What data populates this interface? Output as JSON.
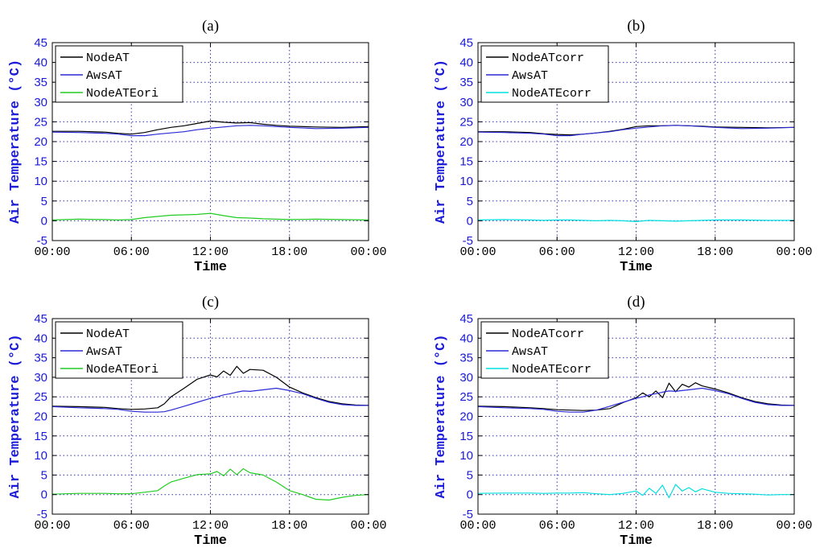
{
  "chart_data": [
    {
      "panel": "(a)",
      "type": "line",
      "title": "(a)",
      "xlabel": "Time",
      "ylabel": "Air Temperature (°C)",
      "ylim": [
        -5,
        45
      ],
      "yticks": [
        "-5",
        "0",
        "5",
        "10",
        "15",
        "20",
        "25",
        "30",
        "35",
        "40",
        "45"
      ],
      "xticks": [
        "00:00",
        "06:00",
        "12:00",
        "18:00",
        "00:00"
      ],
      "xlim": [
        0,
        24
      ],
      "grid": true,
      "legend_position": "top-left",
      "x": [
        0,
        2,
        4,
        5,
        6,
        7,
        8,
        9,
        10,
        11,
        12,
        13,
        14,
        15,
        16,
        17,
        18,
        20,
        22,
        24
      ],
      "series": [
        {
          "name": "NodeAT",
          "color": "#000000",
          "values": [
            22.6,
            22.6,
            22.4,
            22.1,
            21.9,
            22.3,
            23.0,
            23.6,
            24.0,
            24.6,
            25.2,
            24.9,
            24.7,
            24.8,
            24.4,
            24.1,
            23.9,
            23.7,
            23.6,
            23.8
          ]
        },
        {
          "name": "AwsAT",
          "color": "#2a2ad6",
          "values": [
            22.4,
            22.3,
            22.1,
            21.9,
            21.5,
            21.5,
            21.9,
            22.2,
            22.5,
            23.0,
            23.4,
            23.7,
            24.0,
            24.1,
            24.0,
            23.8,
            23.6,
            23.3,
            23.4,
            23.6
          ]
        },
        {
          "name": "NodeATEori",
          "color": "#22cc22",
          "values": [
            0.2,
            0.4,
            0.3,
            0.2,
            0.3,
            0.8,
            1.1,
            1.4,
            1.5,
            1.6,
            1.9,
            1.3,
            0.8,
            0.7,
            0.5,
            0.4,
            0.3,
            0.4,
            0.3,
            0.2
          ]
        }
      ]
    },
    {
      "panel": "(b)",
      "type": "line",
      "title": "(b)",
      "xlabel": "Time",
      "ylabel": "Air Temperature (°C)",
      "ylim": [
        -5,
        45
      ],
      "yticks": [
        "-5",
        "0",
        "5",
        "10",
        "15",
        "20",
        "25",
        "30",
        "35",
        "40",
        "45"
      ],
      "xticks": [
        "00:00",
        "06:00",
        "12:00",
        "18:00",
        "00:00"
      ],
      "xlim": [
        0,
        24
      ],
      "grid": true,
      "legend_position": "top-left",
      "x": [
        0,
        2,
        4,
        5,
        6,
        7,
        8,
        9,
        10,
        11,
        12,
        13,
        14,
        15,
        16,
        17,
        18,
        20,
        22,
        24
      ],
      "series": [
        {
          "name": "NodeATcorr",
          "color": "#000000",
          "values": [
            22.5,
            22.5,
            22.3,
            22.0,
            21.8,
            21.7,
            21.9,
            22.2,
            22.6,
            23.1,
            23.8,
            24.0,
            24.0,
            24.1,
            24.0,
            23.9,
            23.7,
            23.6,
            23.5,
            23.6
          ]
        },
        {
          "name": "AwsAT",
          "color": "#2a2ad6",
          "values": [
            22.4,
            22.3,
            22.1,
            21.9,
            21.5,
            21.5,
            21.9,
            22.2,
            22.5,
            23.0,
            23.4,
            23.7,
            24.0,
            24.1,
            24.0,
            23.8,
            23.6,
            23.3,
            23.4,
            23.6
          ]
        },
        {
          "name": "NodeATEcorr",
          "color": "#00e0e0",
          "values": [
            0.2,
            0.3,
            0.2,
            0.1,
            0.2,
            0.2,
            0.1,
            0.0,
            0.1,
            0.0,
            -0.2,
            0.1,
            0.0,
            -0.1,
            0.0,
            0.1,
            0.2,
            0.2,
            0.1,
            0.1
          ]
        }
      ]
    },
    {
      "panel": "(c)",
      "type": "line",
      "title": "(c)",
      "xlabel": "Time",
      "ylabel": "Air Temperature (°C)",
      "ylim": [
        -5,
        45
      ],
      "yticks": [
        "-5",
        "0",
        "5",
        "10",
        "15",
        "20",
        "25",
        "30",
        "35",
        "40",
        "45"
      ],
      "xticks": [
        "00:00",
        "06:00",
        "12:00",
        "18:00",
        "00:00"
      ],
      "xlim": [
        0,
        24
      ],
      "grid": true,
      "legend_position": "top-left",
      "x": [
        0,
        2,
        4,
        5,
        6,
        7,
        8,
        8.5,
        9,
        10,
        11,
        12,
        12.5,
        13,
        13.5,
        14,
        14.5,
        15,
        16,
        17,
        18,
        19,
        20,
        21,
        22,
        23,
        24
      ],
      "series": [
        {
          "name": "NodeAT",
          "color": "#000000",
          "values": [
            22.6,
            22.5,
            22.3,
            22.0,
            21.8,
            21.9,
            22.2,
            23.2,
            25.0,
            27.2,
            29.5,
            30.6,
            30.1,
            31.6,
            30.5,
            32.8,
            31.0,
            32.0,
            31.8,
            30.0,
            27.5,
            26.0,
            24.8,
            23.8,
            23.2,
            22.9,
            22.8
          ]
        },
        {
          "name": "AwsAT",
          "color": "#2a2ad6",
          "values": [
            22.5,
            22.2,
            22.0,
            21.8,
            21.3,
            21.1,
            21.1,
            21.2,
            21.6,
            22.6,
            23.6,
            24.6,
            25.0,
            25.5,
            25.8,
            26.2,
            26.5,
            26.4,
            26.8,
            27.2,
            26.6,
            25.8,
            24.6,
            23.6,
            23.0,
            22.8,
            22.8
          ]
        },
        {
          "name": "NodeATEori",
          "color": "#22cc22",
          "values": [
            0.1,
            0.3,
            0.3,
            0.2,
            0.2,
            0.6,
            1.0,
            2.2,
            3.2,
            4.2,
            5.1,
            5.3,
            5.9,
            4.8,
            6.5,
            5.1,
            6.6,
            5.6,
            5.0,
            3.2,
            1.0,
            0.0,
            -1.2,
            -1.4,
            -0.7,
            -0.2,
            0.0
          ]
        }
      ]
    },
    {
      "panel": "(d)",
      "type": "line",
      "title": "(d)",
      "xlabel": "Time",
      "ylabel": "Air Temperature (°C)",
      "ylim": [
        -5,
        45
      ],
      "yticks": [
        "-5",
        "0",
        "5",
        "10",
        "15",
        "20",
        "25",
        "30",
        "35",
        "40",
        "45"
      ],
      "xticks": [
        "00:00",
        "06:00",
        "12:00",
        "18:00",
        "00:00"
      ],
      "xlim": [
        0,
        24
      ],
      "grid": true,
      "legend_position": "top-left",
      "x": [
        0,
        2,
        4,
        5,
        6,
        7,
        8,
        9,
        10,
        11,
        12,
        12.5,
        13,
        13.5,
        14,
        14.5,
        15,
        15.5,
        16,
        16.5,
        17,
        18,
        19,
        20,
        21,
        22,
        23,
        24
      ],
      "series": [
        {
          "name": "NodeATcorr",
          "color": "#000000",
          "values": [
            22.6,
            22.5,
            22.2,
            22.0,
            21.7,
            21.6,
            21.5,
            21.6,
            22.0,
            23.5,
            24.8,
            26.0,
            25.0,
            26.5,
            24.8,
            28.5,
            26.3,
            28.2,
            27.5,
            28.6,
            27.8,
            27.0,
            26.0,
            24.8,
            23.8,
            23.2,
            22.9,
            22.8
          ]
        },
        {
          "name": "AwsAT",
          "color": "#2a2ad6",
          "values": [
            22.5,
            22.2,
            22.0,
            21.8,
            21.3,
            21.1,
            21.1,
            21.6,
            22.6,
            23.6,
            24.6,
            25.0,
            25.5,
            25.8,
            26.2,
            26.5,
            26.4,
            26.6,
            26.8,
            27.0,
            27.2,
            26.6,
            25.8,
            24.6,
            23.6,
            23.0,
            22.8,
            22.8
          ]
        },
        {
          "name": "NodeATEcorr",
          "color": "#00e0e0",
          "values": [
            0.3,
            0.4,
            0.4,
            0.3,
            0.4,
            0.4,
            0.5,
            0.2,
            0.0,
            0.3,
            0.9,
            -0.2,
            1.6,
            0.3,
            2.4,
            -0.8,
            2.6,
            0.9,
            1.8,
            0.7,
            1.5,
            0.6,
            0.3,
            0.2,
            0.1,
            -0.1,
            0.0,
            0.0
          ]
        }
      ]
    }
  ],
  "label_color": "#1a1ad8"
}
